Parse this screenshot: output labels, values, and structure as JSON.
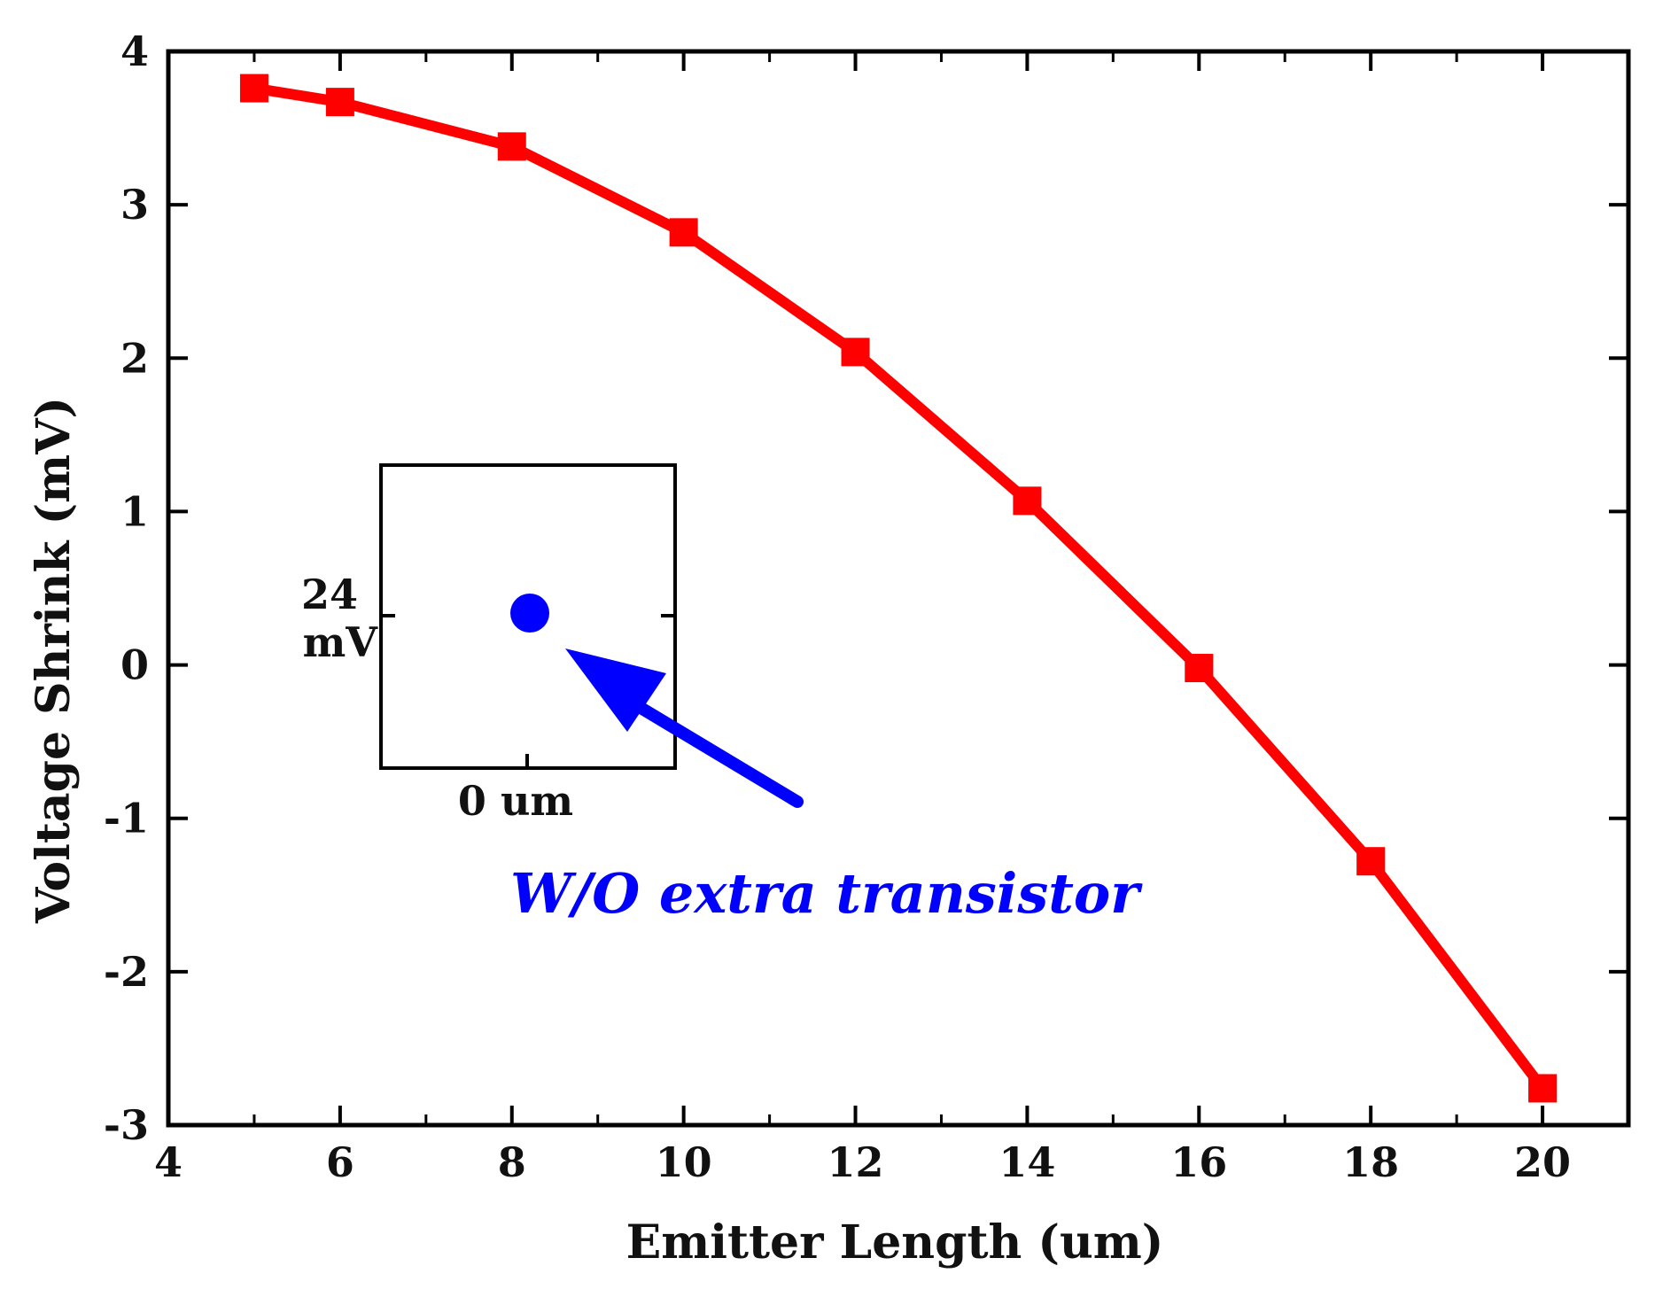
{
  "chart_data": {
    "type": "line",
    "title": "",
    "xlabel": "Emitter Length (um)",
    "ylabel": "Voltage Shrink (mV)",
    "xlim": [
      4,
      21
    ],
    "ylim": [
      -3,
      4
    ],
    "xticks": [
      4,
      6,
      8,
      10,
      12,
      14,
      16,
      18,
      20
    ],
    "xtick_labels": [
      "4",
      "6",
      "8",
      "10",
      "12",
      "14",
      "16",
      "18",
      "20"
    ],
    "yticks": [
      4,
      3,
      2,
      1,
      0,
      -1,
      -2,
      -3
    ],
    "ytick_labels": [
      "4",
      "3",
      "2",
      "1",
      "0",
      "-1",
      "-2",
      "-3"
    ],
    "grid": false,
    "series": [
      {
        "name": "Voltage Shrink",
        "color": "#ff0000",
        "marker": "square",
        "x": [
          5,
          6,
          8,
          10,
          12,
          14,
          16,
          18,
          20
        ],
        "y": [
          3.76,
          3.67,
          3.38,
          2.82,
          2.04,
          1.07,
          -0.02,
          -1.28,
          -2.76
        ]
      }
    ],
    "inset": {
      "x_label": "0 um",
      "y_label_line1": "24",
      "y_label_line2": "mV",
      "point": {
        "x": 0,
        "y": 24,
        "color": "#0000ff",
        "marker": "circle"
      }
    },
    "annotation": {
      "text": "W/O extra transistor",
      "color": "#0000ff"
    }
  }
}
